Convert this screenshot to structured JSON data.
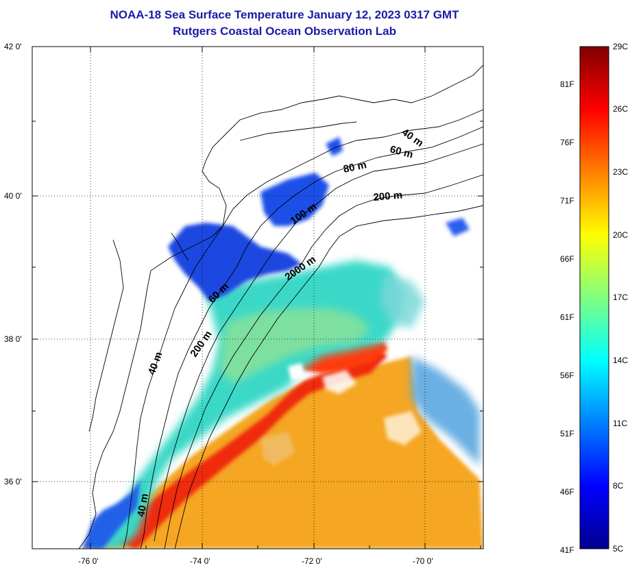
{
  "title": {
    "line1": "NOAA-18 Sea Surface Temperature January 12, 2023 0317 GMT",
    "line2": "Rutgers Coastal Ocean Observation Lab"
  },
  "map": {
    "lat_labels": [
      "42 0'",
      "40 0'",
      "38 0'",
      "36 0'"
    ],
    "lon_labels": [
      "-76 0'",
      "-74 0'",
      "-72 0'",
      "-70 0'"
    ],
    "contour_labels": {
      "c40_north": "40 m",
      "c60_north": "60 m",
      "c80_north": "80 m",
      "c200_north": "200 m",
      "c100_mid": "100 m",
      "c2000_mid": "2000 m",
      "c60_mid": "60 m",
      "c200_south": "200 m",
      "c40_south": "40 m",
      "c40_cape": "40 m"
    }
  },
  "colorbar": {
    "celsius_labels": [
      "29C",
      "26C",
      "23C",
      "20C",
      "17C",
      "14C",
      "11C",
      "8C",
      "5C"
    ],
    "fahrenheit_labels": [
      "81F",
      "76F",
      "71F",
      "66F",
      "61F",
      "56F",
      "51F",
      "46F",
      "41F"
    ],
    "range_celsius": [
      5,
      29
    ],
    "colormap": [
      "#00008f",
      "#0000ff",
      "#0080ff",
      "#00ffff",
      "#80ff80",
      "#ffff00",
      "#ff8000",
      "#ff0000",
      "#800000"
    ]
  }
}
